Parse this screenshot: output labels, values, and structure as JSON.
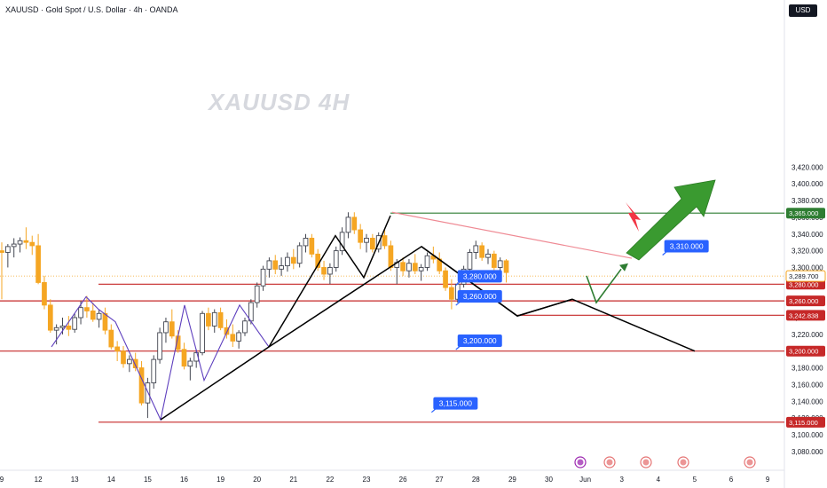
{
  "header": {
    "title": "XAUUSD · Gold Spot / U.S. Dollar · 4h · OANDA",
    "currency_button": "USD",
    "watermark": "XAUUSD 4H"
  },
  "colors": {
    "up": "#434651",
    "down": "#f5a623",
    "support": "#c62828",
    "green": "#2e7d32",
    "arrow_green": "#3a9a30",
    "arrow_red": "#f23645",
    "label": "#2962ff",
    "pattern": "#5e3fbe",
    "trend": "#000000",
    "resistance_trend": "#ef8a94"
  },
  "chart_data": {
    "type": "candlestick",
    "symbol": "XAUUSD",
    "timeframe": "4h",
    "ylim": [
      3070,
      3440
    ],
    "y_ticks": [
      3080,
      3100,
      3120,
      3140,
      3160,
      3180,
      3200,
      3220,
      3240,
      3260,
      3280,
      3300,
      3320,
      3340,
      3360,
      3380,
      3400,
      3420
    ],
    "y_tick_labels": [
      "3,080.000",
      "3,100.000",
      "3,120.000",
      "3,140.000",
      "3,160.000",
      "3,180.000",
      "3,200.000",
      "3,220.000",
      "3,240.000",
      "3,260.000",
      "3,280.000",
      "3,300.000",
      "3,320.000",
      "3,340.000",
      "3,360.000",
      "3,380.000",
      "3,400.000",
      "3,420.000"
    ],
    "x_ticks": [
      {
        "label": "9",
        "bar": 0
      },
      {
        "label": "12",
        "bar": 6
      },
      {
        "label": "13",
        "bar": 12
      },
      {
        "label": "14",
        "bar": 18
      },
      {
        "label": "15",
        "bar": 24
      },
      {
        "label": "16",
        "bar": 30
      },
      {
        "label": "19",
        "bar": 36
      },
      {
        "label": "20",
        "bar": 42
      },
      {
        "label": "21",
        "bar": 48
      },
      {
        "label": "22",
        "bar": 54
      },
      {
        "label": "23",
        "bar": 60
      },
      {
        "label": "26",
        "bar": 66
      },
      {
        "label": "27",
        "bar": 72
      },
      {
        "label": "28",
        "bar": 78
      },
      {
        "label": "29",
        "bar": 84
      },
      {
        "label": "30",
        "bar": 90
      },
      {
        "label": "Jun",
        "bar": 96
      },
      {
        "label": "3",
        "bar": 102
      },
      {
        "label": "4",
        "bar": 108
      },
      {
        "label": "5",
        "bar": 114
      },
      {
        "label": "6",
        "bar": 120
      },
      {
        "label": "9",
        "bar": 126
      }
    ],
    "candles": [
      [
        3320,
        3330,
        3262,
        3318
      ],
      [
        3318,
        3328,
        3300,
        3325
      ],
      [
        3325,
        3335,
        3312,
        3328
      ],
      [
        3328,
        3336,
        3318,
        3332
      ],
      [
        3332,
        3348,
        3322,
        3330
      ],
      [
        3330,
        3338,
        3315,
        3326
      ],
      [
        3326,
        3340,
        3280,
        3282
      ],
      [
        3282,
        3290,
        3250,
        3255
      ],
      [
        3255,
        3262,
        3222,
        3225
      ],
      [
        3225,
        3232,
        3208,
        3228
      ],
      [
        3228,
        3240,
        3220,
        3230
      ],
      [
        3230,
        3242,
        3218,
        3226
      ],
      [
        3226,
        3245,
        3222,
        3240
      ],
      [
        3240,
        3260,
        3232,
        3252
      ],
      [
        3252,
        3266,
        3240,
        3248
      ],
      [
        3248,
        3258,
        3235,
        3238
      ],
      [
        3238,
        3250,
        3228,
        3245
      ],
      [
        3245,
        3252,
        3220,
        3225
      ],
      [
        3225,
        3232,
        3202,
        3205
      ],
      [
        3205,
        3212,
        3188,
        3200
      ],
      [
        3200,
        3206,
        3180,
        3185
      ],
      [
        3185,
        3195,
        3175,
        3190
      ],
      [
        3190,
        3198,
        3176,
        3180
      ],
      [
        3180,
        3188,
        3135,
        3138
      ],
      [
        3138,
        3168,
        3120,
        3162
      ],
      [
        3162,
        3195,
        3155,
        3190
      ],
      [
        3190,
        3228,
        3185,
        3222
      ],
      [
        3222,
        3240,
        3210,
        3235
      ],
      [
        3235,
        3250,
        3215,
        3218
      ],
      [
        3218,
        3225,
        3198,
        3202
      ],
      [
        3202,
        3210,
        3178,
        3182
      ],
      [
        3182,
        3192,
        3165,
        3188
      ],
      [
        3188,
        3202,
        3180,
        3198
      ],
      [
        3198,
        3248,
        3195,
        3245
      ],
      [
        3245,
        3252,
        3225,
        3230
      ],
      [
        3230,
        3250,
        3222,
        3246
      ],
      [
        3246,
        3252,
        3225,
        3228
      ],
      [
        3228,
        3238,
        3215,
        3220
      ],
      [
        3220,
        3232,
        3205,
        3212
      ],
      [
        3212,
        3225,
        3203,
        3222
      ],
      [
        3222,
        3240,
        3218,
        3236
      ],
      [
        3236,
        3262,
        3232,
        3258
      ],
      [
        3258,
        3282,
        3252,
        3278
      ],
      [
        3278,
        3302,
        3272,
        3298
      ],
      [
        3298,
        3312,
        3288,
        3308
      ],
      [
        3308,
        3315,
        3292,
        3298
      ],
      [
        3298,
        3312,
        3290,
        3302
      ],
      [
        3302,
        3318,
        3295,
        3312
      ],
      [
        3312,
        3322,
        3298,
        3305
      ],
      [
        3305,
        3330,
        3300,
        3326
      ],
      [
        3326,
        3340,
        3318,
        3335
      ],
      [
        3335,
        3340,
        3312,
        3316
      ],
      [
        3316,
        3322,
        3296,
        3300
      ],
      [
        3300,
        3308,
        3285,
        3292
      ],
      [
        3292,
        3305,
        3280,
        3300
      ],
      [
        3300,
        3325,
        3295,
        3320
      ],
      [
        3320,
        3348,
        3315,
        3342
      ],
      [
        3342,
        3366,
        3335,
        3360
      ],
      [
        3360,
        3366,
        3340,
        3345
      ],
      [
        3345,
        3352,
        3322,
        3330
      ],
      [
        3330,
        3340,
        3318,
        3335
      ],
      [
        3335,
        3340,
        3318,
        3322
      ],
      [
        3322,
        3342,
        3318,
        3338
      ],
      [
        3338,
        3346,
        3322,
        3326
      ],
      [
        3326,
        3332,
        3296,
        3300
      ],
      [
        3300,
        3310,
        3280,
        3306
      ],
      [
        3306,
        3312,
        3290,
        3296
      ],
      [
        3296,
        3310,
        3288,
        3305
      ],
      [
        3305,
        3316,
        3292,
        3296
      ],
      [
        3296,
        3304,
        3284,
        3300
      ],
      [
        3300,
        3318,
        3296,
        3314
      ],
      [
        3314,
        3325,
        3305,
        3310
      ],
      [
        3310,
        3318,
        3292,
        3296
      ],
      [
        3296,
        3300,
        3272,
        3276
      ],
      [
        3276,
        3286,
        3250,
        3262
      ],
      [
        3262,
        3282,
        3258,
        3280
      ],
      [
        3280,
        3302,
        3276,
        3298
      ],
      [
        3298,
        3322,
        3292,
        3318
      ],
      [
        3318,
        3332,
        3310,
        3326
      ],
      [
        3326,
        3330,
        3308,
        3312
      ],
      [
        3312,
        3322,
        3304,
        3316
      ],
      [
        3316,
        3320,
        3296,
        3300
      ],
      [
        3300,
        3312,
        3292,
        3308
      ],
      [
        3308,
        3310,
        3282,
        3294
      ]
    ],
    "horizontal_levels": [
      {
        "value": 3365,
        "label": "3,365.000",
        "color": "#2e7d32"
      },
      {
        "value": 3280,
        "label": "3,280.000",
        "color": "#c62828"
      },
      {
        "value": 3260,
        "label": "3,260.000",
        "color": "#c62828"
      },
      {
        "value": 3242.838,
        "label": "3,242.838",
        "color": "#c62828"
      },
      {
        "value": 3200,
        "label": "3,200.000",
        "color": "#c62828"
      },
      {
        "value": 3115,
        "label": "3,115.000",
        "color": "#c62828"
      }
    ],
    "current_price": {
      "value": 3289.7,
      "label": "3,289.700"
    },
    "callouts": [
      {
        "label": "3,310.000",
        "bar": 109,
        "value": 3318
      },
      {
        "label": "3,280.000",
        "bar": 75,
        "value": 3282
      },
      {
        "label": "3,260.000",
        "bar": 75,
        "value": 3258
      },
      {
        "label": "3,200.000",
        "bar": 75,
        "value": 3205
      },
      {
        "label": "3,115.000",
        "bar": 71,
        "value": 3130
      }
    ]
  }
}
